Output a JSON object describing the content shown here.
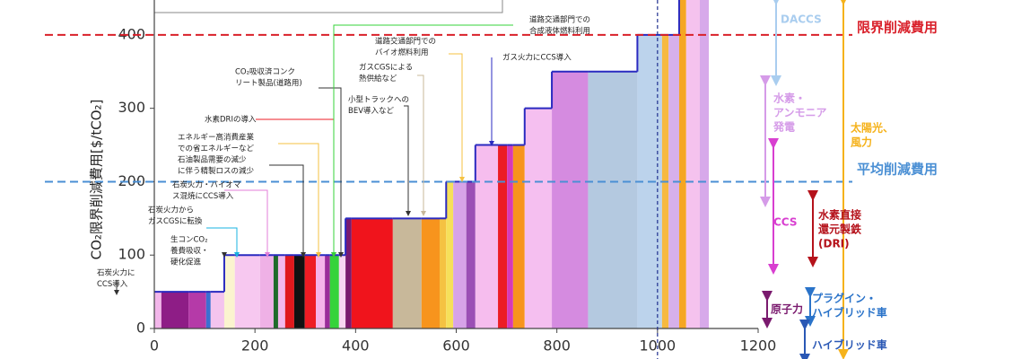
{
  "chart_data": {
    "type": "step-bar",
    "y_label": "CO₂限界削減費用[$/tCO₂]",
    "xlim": [
      0,
      1200
    ],
    "xticks": [
      0,
      200,
      400,
      600,
      800,
      1000,
      1200
    ],
    "ylim": [
      0,
      450
    ],
    "yticks": [
      0,
      100,
      200,
      300,
      400
    ],
    "segments": [
      {
        "x0": 0,
        "x1": 14,
        "value": 50,
        "color": "#f2b6ea"
      },
      {
        "x0": 14,
        "x1": 68,
        "value": 50,
        "color": "#8e1d86"
      },
      {
        "x0": 68,
        "x1": 103,
        "value": 50,
        "color": "#b53aa8"
      },
      {
        "x0": 103,
        "x1": 112,
        "value": 50,
        "color": "#3b6fd1"
      },
      {
        "x0": 112,
        "x1": 139,
        "value": 50,
        "color": "#f4c4ee"
      },
      {
        "x0": 139,
        "x1": 160,
        "value": 100,
        "color": "#fbf4cf"
      },
      {
        "x0": 160,
        "x1": 210,
        "value": 100,
        "color": "#f7c8f0"
      },
      {
        "x0": 210,
        "x1": 237,
        "value": 100,
        "color": "#efb1e6"
      },
      {
        "x0": 237,
        "x1": 246,
        "value": 100,
        "color": "#1f6b2a"
      },
      {
        "x0": 246,
        "x1": 260,
        "value": 100,
        "color": "#f3b8ec"
      },
      {
        "x0": 260,
        "x1": 278,
        "value": 100,
        "color": "#e0181c"
      },
      {
        "x0": 278,
        "x1": 299,
        "value": 100,
        "color": "#111111"
      },
      {
        "x0": 299,
        "x1": 321,
        "value": 100,
        "color": "#ee1c24"
      },
      {
        "x0": 321,
        "x1": 339,
        "value": 100,
        "color": "#f5b3ea"
      },
      {
        "x0": 339,
        "x1": 349,
        "value": 100,
        "color": "#9a2b9a"
      },
      {
        "x0": 349,
        "x1": 367,
        "value": 100,
        "color": "#36d33a"
      },
      {
        "x0": 367,
        "x1": 380,
        "value": 100,
        "color": "#f8d6f2"
      },
      {
        "x0": 380,
        "x1": 392,
        "value": 150,
        "color": "#7a1a6e"
      },
      {
        "x0": 392,
        "x1": 474,
        "value": 150,
        "color": "#f0141c"
      },
      {
        "x0": 474,
        "x1": 531,
        "value": 150,
        "color": "#c8b89a"
      },
      {
        "x0": 531,
        "x1": 567,
        "value": 150,
        "color": "#f7941d"
      },
      {
        "x0": 567,
        "x1": 580,
        "value": 150,
        "color": "#f5c242"
      },
      {
        "x0": 580,
        "x1": 594,
        "value": 200,
        "color": "#f6e05a"
      },
      {
        "x0": 594,
        "x1": 620,
        "value": 200,
        "color": "#d7a3e8"
      },
      {
        "x0": 620,
        "x1": 638,
        "value": 200,
        "color": "#9b4fb5"
      },
      {
        "x0": 638,
        "x1": 683,
        "value": 250,
        "color": "#f6bdee"
      },
      {
        "x0": 683,
        "x1": 701,
        "value": 250,
        "color": "#ec1c24"
      },
      {
        "x0": 701,
        "x1": 713,
        "value": 250,
        "color": "#d63ab8"
      },
      {
        "x0": 713,
        "x1": 736,
        "value": 250,
        "color": "#f7941d"
      },
      {
        "x0": 736,
        "x1": 790,
        "value": 300,
        "color": "#f5bff0"
      },
      {
        "x0": 790,
        "x1": 862,
        "value": 350,
        "color": "#d58be0"
      },
      {
        "x0": 862,
        "x1": 960,
        "value": 350,
        "color": "#b4c9e0"
      },
      {
        "x0": 960,
        "x1": 1009,
        "value": 400,
        "color": "#bcd3ec"
      },
      {
        "x0": 1009,
        "x1": 1022,
        "value": 400,
        "color": "#f7b940"
      },
      {
        "x0": 1022,
        "x1": 1043,
        "value": 400,
        "color": "#d6b0ea"
      },
      {
        "x0": 1043,
        "x1": 1057,
        "value": 450,
        "color": "#f5a623"
      },
      {
        "x0": 1057,
        "x1": 1084,
        "value": 450,
        "color": "#f5c2ee"
      },
      {
        "x0": 1084,
        "x1": 1102,
        "value": 450,
        "color": "#d7a9ea"
      }
    ],
    "reference_lines": [
      {
        "value": 400,
        "label": "限界削減費用",
        "color": "#d9202a"
      },
      {
        "value": 200,
        "label": "平均削減費用",
        "color": "#4a8fd4"
      }
    ],
    "vline": {
      "value": 1000,
      "color": "#1f2f8f"
    },
    "annotations": [
      {
        "lines": [
          "石炭火力に",
          "CCS導入"
        ]
      },
      {
        "lines": [
          "生コンCO₂",
          "養費吸収・",
          "硬化促進"
        ]
      },
      {
        "lines": [
          "石炭火力から",
          "ガスCGSに転換"
        ]
      },
      {
        "lines": [
          "石炭火力・バイオマ",
          "ス混焼にCCS導入"
        ]
      },
      {
        "lines": [
          "石油製品需要の減少",
          "に伴う精製ロスの減少"
        ]
      },
      {
        "lines": [
          "エネルギー高消費産業",
          "での省エネルギーなど"
        ]
      },
      {
        "lines": [
          "水素DRIの導入"
        ]
      },
      {
        "lines": [
          "CO₂吸収済コンク",
          "リート製品(道路用)"
        ]
      },
      {
        "lines": [
          "道路交通部門での",
          "バイオ燃料利用"
        ]
      },
      {
        "lines": [
          "ガスCGSによる",
          "熱供給など"
        ]
      },
      {
        "lines": [
          "小型トラックへの",
          "BEV導入など"
        ]
      },
      {
        "lines": [
          "道路交通部門での",
          "合成液体燃料利用"
        ]
      },
      {
        "lines": [
          "ガス火力にCCS導入"
        ]
      }
    ],
    "technologies": [
      {
        "lines": [
          "DACCS"
        ],
        "color": "#a9cdef"
      },
      {
        "lines": [
          "水素・",
          "アンモニア",
          "発電"
        ],
        "color": "#d59be8"
      },
      {
        "lines": [
          "太陽光、",
          "風力"
        ],
        "color": "#f5b21b"
      },
      {
        "lines": [
          "CCS"
        ],
        "color": "#d83fd0"
      },
      {
        "lines": [
          "水素直接",
          "還元製鉄",
          "(DRI)"
        ],
        "color": "#b5121b"
      },
      {
        "lines": [
          "原子力"
        ],
        "color": "#7a1a6e"
      },
      {
        "lines": [
          "プラグイン・",
          "ハイブリッド車"
        ],
        "color": "#2a73c9"
      },
      {
        "lines": [
          "ハイブリッド車"
        ],
        "color": "#2a58b5"
      }
    ]
  }
}
